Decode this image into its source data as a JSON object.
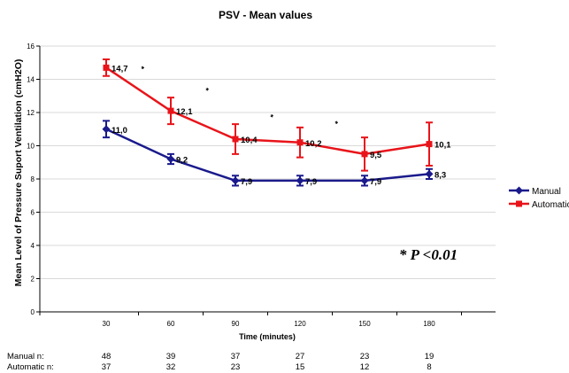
{
  "chart_data": {
    "type": "line",
    "title": "PSV - Mean values",
    "xlabel": "Time (minutes)",
    "ylabel": "Mean Level of Pressure Suport Ventilation (cmH2O)",
    "x": [
      30,
      60,
      90,
      120,
      150,
      180
    ],
    "x_tick_labels": [
      "30",
      "60",
      "90",
      "120",
      "150",
      "180"
    ],
    "ylim": [
      0,
      16
    ],
    "y_ticks": [
      0,
      2,
      4,
      6,
      8,
      10,
      12,
      14,
      16
    ],
    "grid": true,
    "legend_position": "right",
    "series": [
      {
        "name": "Manual",
        "color": "#1a1a8c",
        "marker": "diamond",
        "values": [
          11.0,
          9.2,
          7.9,
          7.9,
          7.9,
          8.3
        ],
        "errors": [
          0.5,
          0.3,
          0.3,
          0.3,
          0.3,
          0.3
        ],
        "labels": [
          "11,0",
          "9,2",
          "7,9",
          "7,9",
          "7,9",
          "8,3"
        ]
      },
      {
        "name": "Automatic",
        "color": "#e8141a",
        "marker": "square",
        "values": [
          14.7,
          12.1,
          10.4,
          10.2,
          9.5,
          10.1
        ],
        "errors": [
          0.5,
          0.8,
          0.9,
          0.9,
          1.0,
          1.3
        ],
        "labels": [
          "14,7",
          "12,1",
          "10,4",
          "10,2",
          "9,5",
          "10,1"
        ]
      }
    ],
    "significance_markers": [
      {
        "text": "*",
        "x": 45,
        "y": 14.7
      },
      {
        "text": "*",
        "x": 75,
        "y": 13.4
      },
      {
        "text": "*",
        "x": 105,
        "y": 11.8
      },
      {
        "text": "*",
        "x": 135,
        "y": 11.4
      }
    ],
    "annotation": "* P <0.01"
  },
  "n_table": {
    "rows": [
      {
        "label": "Manual n:",
        "values": [
          "48",
          "39",
          "37",
          "27",
          "23",
          "19"
        ]
      },
      {
        "label": "Automatic n:",
        "values": [
          "37",
          "32",
          "23",
          "15",
          "12",
          "8"
        ]
      }
    ]
  }
}
